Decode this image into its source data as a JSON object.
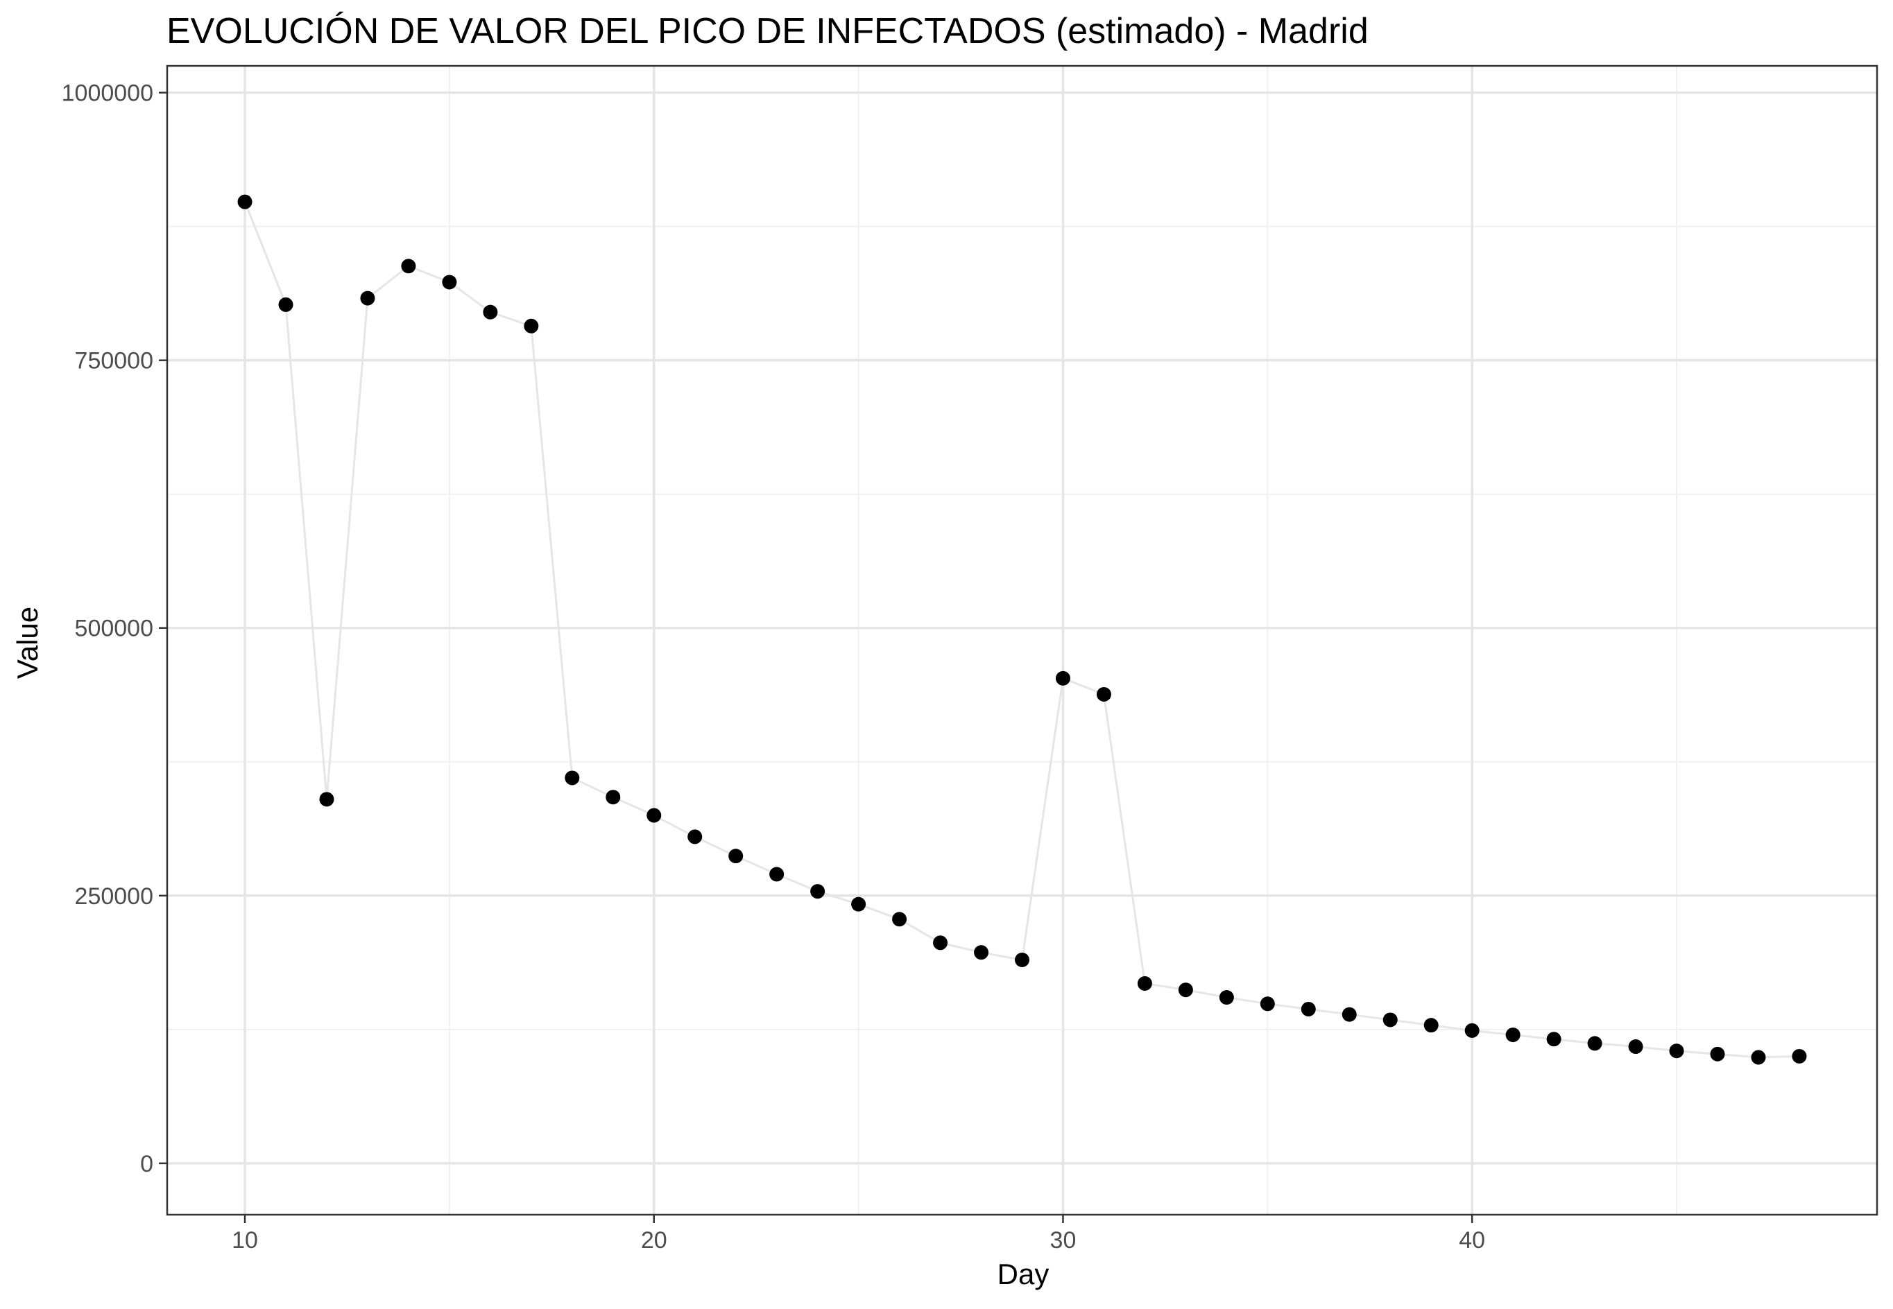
{
  "chart_data": {
    "type": "line",
    "title": "EVOLUCIÓN DE VALOR DEL PICO DE INFECTADOS (estimado) - Madrid",
    "xlabel": "Day",
    "ylabel": "Value",
    "xlim": [
      8.1,
      49.9
    ],
    "ylim": [
      -48000,
      1025000
    ],
    "x_ticks": [
      10,
      20,
      30,
      40
    ],
    "y_ticks": [
      0,
      250000,
      500000,
      750000,
      1000000
    ],
    "y_tick_labels": [
      "0",
      "250000",
      "500000",
      "750000",
      "1000000"
    ],
    "grid": true,
    "legend": "none",
    "colors": {
      "point": "#000000",
      "line": "#e6e6e6",
      "grid_major": "#e5e5e5",
      "grid_minor": "#f0f0f0",
      "border": "#333333"
    },
    "series": [
      {
        "x": [
          10,
          11,
          12,
          13,
          14,
          15,
          16,
          17,
          18,
          19,
          20,
          21,
          22,
          23,
          24,
          25,
          26,
          27,
          28,
          29,
          30,
          31,
          32,
          33,
          34,
          35,
          36,
          37,
          38,
          39,
          40,
          41,
          42,
          43,
          44,
          45,
          46,
          47,
          48
        ],
        "values": [
          898000,
          802000,
          340000,
          808000,
          838000,
          823000,
          795000,
          782000,
          360000,
          342000,
          325000,
          305000,
          287000,
          270000,
          254000,
          242000,
          228000,
          206000,
          197000,
          190000,
          453000,
          438000,
          168000,
          162000,
          155000,
          149000,
          144000,
          139000,
          134000,
          129000,
          124000,
          120000,
          116000,
          112000,
          109000,
          105000,
          102000,
          99000,
          100000
        ]
      }
    ]
  }
}
